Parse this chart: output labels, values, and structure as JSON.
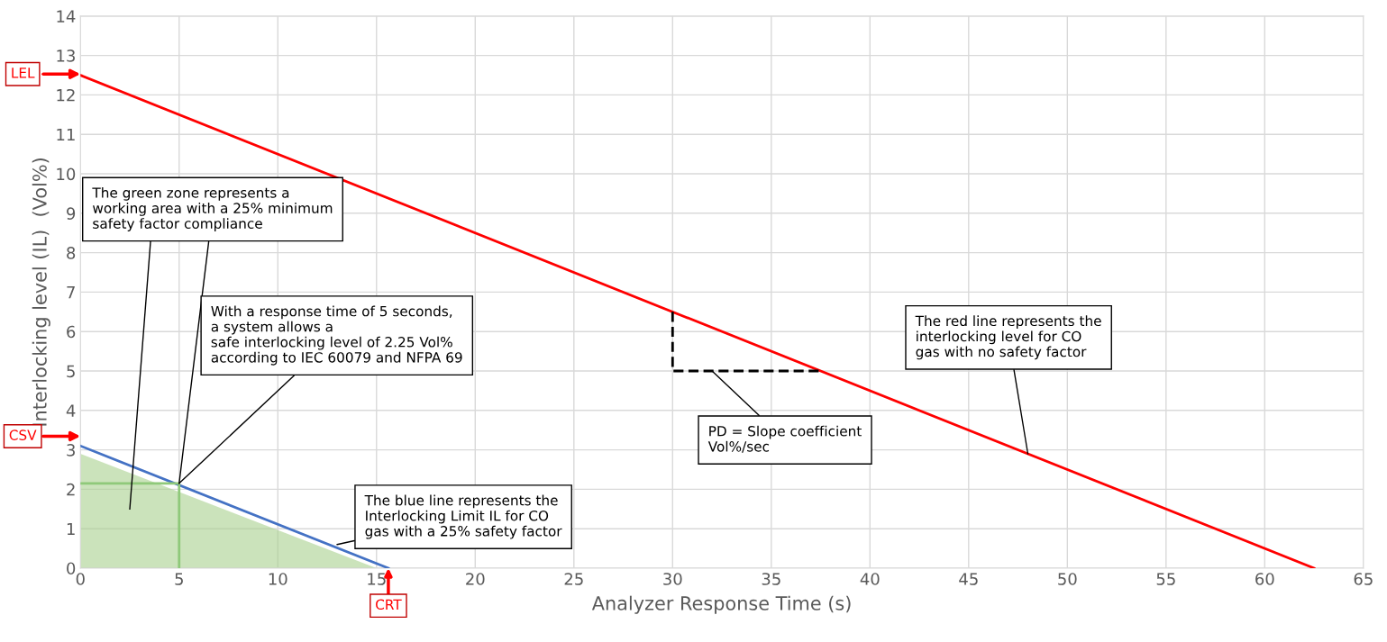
{
  "chart_data": {
    "type": "line",
    "xlabel": "Analyzer Response Time (s)",
    "ylabel": "Interlocking level (IL)  (Vol%)",
    "xlim": [
      0,
      65
    ],
    "ylim": [
      0,
      14
    ],
    "xticks": [
      0,
      5,
      10,
      15,
      20,
      25,
      30,
      35,
      40,
      45,
      50,
      55,
      60,
      65
    ],
    "yticks": [
      0,
      1,
      2,
      3,
      4,
      5,
      6,
      7,
      8,
      9,
      10,
      11,
      12,
      13,
      14
    ],
    "grid": true,
    "legend": false,
    "marker": "none",
    "line_style": "solid",
    "series": [
      {
        "type": "area",
        "color": "#a9d18e",
        "x": [
          0,
          15
        ],
        "values": [
          2.9,
          0
        ]
      },
      {
        "color": "#ff0000",
        "x": [
          0,
          62.5
        ],
        "values": [
          12.5,
          0
        ]
      },
      {
        "color": "#4472c4",
        "x": [
          0,
          15.6
        ],
        "values": [
          3.1,
          0
        ]
      },
      {
        "color": "#8fc97a",
        "x": [
          0,
          5,
          5
        ],
        "values": [
          2.15,
          2.15,
          0
        ]
      },
      {
        "color": "#000000",
        "line_style": "dashed",
        "x": [
          30,
          30,
          37.5
        ],
        "values": [
          6.5,
          5,
          5
        ]
      }
    ],
    "annotations": [
      "LEL",
      "CSV",
      {
        "text": "CRT",
        "x": 15.6,
        "y": 0
      },
      {
        "text": "The green zone represents a\nworking area with a 25% minimum\nsafety factor compliance",
        "x": 5,
        "y": 2.15
      },
      {
        "text": "With a response time of 5 seconds,\na system allows a\nsafe interlocking level of 2.25 Vol%\naccording to IEC 60079 and NFPA 69",
        "x": 5,
        "y": 2.15
      },
      {
        "text": "The blue line represents the\nInterlocking Limit IL for CO\ngas with a 25% safety factor",
        "x": 13,
        "y": 0.6
      },
      {
        "text": "PD = Slope coefficient\nVol%/sec",
        "x": 32,
        "y": 5
      },
      {
        "text": "The red line represents the\ninterlocking level for CO\ngas with no safety factor",
        "x": 48,
        "y": 2.9
      }
    ]
  }
}
